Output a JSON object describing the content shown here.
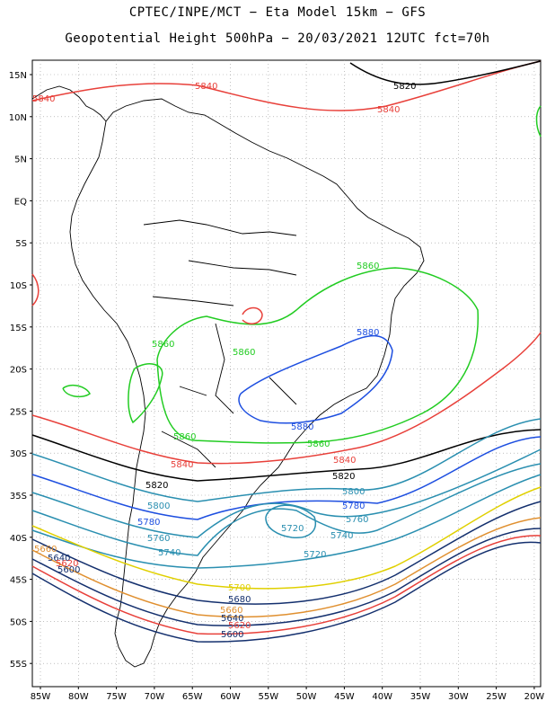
{
  "title": {
    "line1": "CPTEC/INPE/MCT −  Eta Model 15km − GFS",
    "line2": "Geopotential Height 500hPa − 20/03/2021 12UTC fct=70h"
  },
  "axes": {
    "lat_ticks": [
      "15N",
      "10N",
      "5N",
      "EQ",
      "5S",
      "10S",
      "15S",
      "20S",
      "25S",
      "30S",
      "35S",
      "40S",
      "45S",
      "50S",
      "55S"
    ],
    "lon_ticks": [
      "85W",
      "80W",
      "75W",
      "70W",
      "65W",
      "60W",
      "55W",
      "50W",
      "45W",
      "40W",
      "35W",
      "30W",
      "25W",
      "20W"
    ]
  },
  "contour_labels": [
    {
      "text": "5840",
      "color": "#e8403a"
    },
    {
      "text": "5840",
      "color": "#e8403a"
    },
    {
      "text": "5840",
      "color": "#e8403a"
    },
    {
      "text": "5820",
      "color": "#000000"
    },
    {
      "text": "5860",
      "color": "#22cc22"
    },
    {
      "text": "5860",
      "color": "#22cc22"
    },
    {
      "text": "5860",
      "color": "#22cc22"
    },
    {
      "text": "5860",
      "color": "#22cc22"
    },
    {
      "text": "5860",
      "color": "#22cc22"
    },
    {
      "text": "5880",
      "color": "#1e4fe0"
    },
    {
      "text": "5880",
      "color": "#1e4fe0"
    },
    {
      "text": "5840",
      "color": "#e8403a"
    },
    {
      "text": "5840",
      "color": "#e8403a"
    },
    {
      "text": "5820",
      "color": "#000000"
    },
    {
      "text": "5820",
      "color": "#000000"
    },
    {
      "text": "5800",
      "color": "#2a8fb0"
    },
    {
      "text": "5800",
      "color": "#2a8fb0"
    },
    {
      "text": "5780",
      "color": "#1e4fe0"
    },
    {
      "text": "5780",
      "color": "#1e4fe0"
    },
    {
      "text": "5760",
      "color": "#2a8fb0"
    },
    {
      "text": "5760",
      "color": "#2a8fb0"
    },
    {
      "text": "5740",
      "color": "#2a8fb0"
    },
    {
      "text": "5740",
      "color": "#2a8fb0"
    },
    {
      "text": "5720",
      "color": "#2a8fb0"
    },
    {
      "text": "5720",
      "color": "#2a8fb0"
    },
    {
      "text": "5700",
      "color": "#e0d000"
    },
    {
      "text": "5680",
      "color": "#14306e"
    },
    {
      "text": "5660",
      "color": "#e09030"
    },
    {
      "text": "5660",
      "color": "#e09030"
    },
    {
      "text": "5640",
      "color": "#14306e"
    },
    {
      "text": "5640",
      "color": "#14306e"
    },
    {
      "text": "5620",
      "color": "#e8403a"
    },
    {
      "text": "5620",
      "color": "#e8403a"
    },
    {
      "text": "5600",
      "color": "#14306e"
    },
    {
      "text": "5600",
      "color": "#14306e"
    }
  ]
}
